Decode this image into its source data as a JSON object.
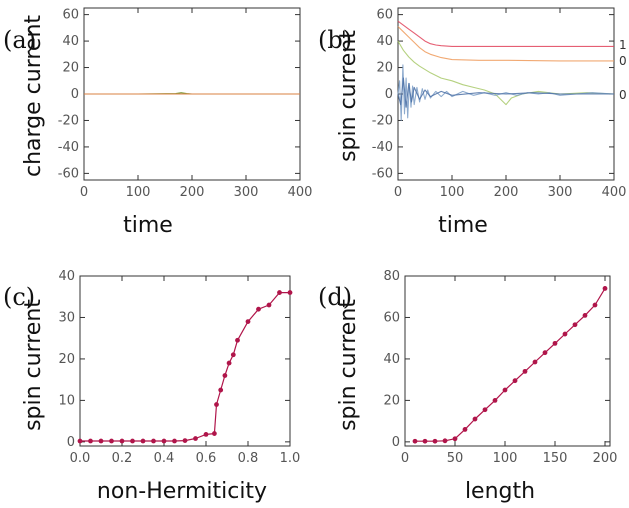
{
  "chart_data": [
    {
      "panel_label": "(a)",
      "type": "line",
      "xlabel": "time",
      "ylabel": "charge current",
      "xlim": [
        0,
        400
      ],
      "ylim": [
        -65,
        65
      ],
      "xticks": [
        0,
        100,
        200,
        300,
        400
      ],
      "yticks": [
        -60,
        -40,
        -20,
        0,
        20,
        40,
        60
      ],
      "series": [
        {
          "color": "#6b8e23",
          "x": [
            0,
            100,
            170,
            180,
            190,
            200,
            300,
            400
          ],
          "y": [
            0,
            0,
            0.3,
            1.0,
            0.4,
            0,
            0,
            0
          ]
        },
        {
          "color": "#c0392b",
          "x": [
            0,
            200,
            400
          ],
          "y": [
            0,
            0,
            0
          ]
        },
        {
          "color": "#e08a44",
          "x": [
            0,
            200,
            400
          ],
          "y": [
            0,
            0,
            0
          ]
        }
      ]
    },
    {
      "panel_label": "(b)",
      "type": "line",
      "xlabel": "time",
      "ylabel": "spin current",
      "xlim": [
        0,
        400
      ],
      "ylim": [
        -65,
        65
      ],
      "xticks": [
        0,
        100,
        200,
        300,
        400
      ],
      "yticks": [
        -60,
        -40,
        -20,
        0,
        20,
        40,
        60
      ],
      "side_labels": [
        "1",
        "0",
        "0"
      ],
      "series": [
        {
          "color": "#e0435a",
          "x": [
            0,
            10,
            20,
            30,
            40,
            50,
            60,
            70,
            80,
            100,
            150,
            200,
            300,
            400
          ],
          "y": [
            55,
            52,
            49,
            46,
            43,
            40,
            38,
            37,
            36.5,
            36,
            36,
            36,
            36,
            36
          ]
        },
        {
          "color": "#ef9a5a",
          "x": [
            0,
            10,
            20,
            30,
            40,
            50,
            60,
            80,
            100,
            150,
            200,
            300,
            400
          ],
          "y": [
            51,
            47,
            43,
            39,
            35,
            32,
            30,
            27.5,
            26,
            25.5,
            25.5,
            25,
            25
          ]
        },
        {
          "color": "#a8c96a",
          "x": [
            0,
            10,
            20,
            30,
            40,
            60,
            80,
            100,
            120,
            140,
            160,
            180,
            200,
            210,
            230,
            260,
            300,
            350,
            400
          ],
          "y": [
            40,
            33,
            28,
            24,
            21,
            16,
            12,
            10,
            7,
            5,
            3,
            0,
            -8,
            -3,
            0,
            2,
            0,
            1,
            0
          ]
        },
        {
          "color": "#7a9cc6",
          "x": [
            0,
            3,
            6,
            9,
            12,
            15,
            18,
            21,
            24,
            27,
            30,
            35,
            40,
            45,
            50,
            55,
            60,
            70,
            80,
            90,
            100,
            120,
            140,
            160,
            180,
            200,
            220,
            240,
            260,
            280,
            300,
            330,
            360,
            400
          ],
          "y": [
            0,
            10,
            -20,
            22,
            -15,
            12,
            -18,
            8,
            -10,
            6,
            -8,
            5,
            -6,
            4,
            -4,
            3,
            -3,
            2,
            -2,
            2,
            -2,
            2,
            -1,
            1,
            -1,
            1,
            -1,
            1,
            0,
            1,
            -1,
            0,
            1,
            0
          ]
        },
        {
          "color": "#4a6fa5",
          "x": [
            0,
            5,
            10,
            15,
            20,
            25,
            30,
            40,
            50,
            60,
            80,
            100,
            150,
            200,
            250,
            300,
            350,
            400
          ],
          "y": [
            0,
            -8,
            12,
            -10,
            8,
            -6,
            5,
            -4,
            3,
            -2,
            2,
            -1,
            1,
            0,
            1,
            0,
            0,
            0
          ]
        }
      ]
    },
    {
      "panel_label": "(c)",
      "type": "line",
      "xlabel": "non-Hermiticity",
      "ylabel": "spin current",
      "xlim": [
        0,
        1
      ],
      "ylim": [
        -1,
        40
      ],
      "xticks": [
        0.0,
        0.2,
        0.4,
        0.6,
        0.8,
        1.0
      ],
      "yticks": [
        0,
        10,
        20,
        30,
        40
      ],
      "series": [
        {
          "color": "#b0154a",
          "x": [
            0.0,
            0.05,
            0.1,
            0.15,
            0.2,
            0.25,
            0.3,
            0.35,
            0.4,
            0.45,
            0.5,
            0.55,
            0.6,
            0.64,
            0.65,
            0.67,
            0.69,
            0.71,
            0.73,
            0.75,
            0.8,
            0.85,
            0.9,
            0.95,
            1.0
          ],
          "y": [
            0.2,
            0.2,
            0.2,
            0.2,
            0.2,
            0.2,
            0.2,
            0.2,
            0.2,
            0.2,
            0.3,
            0.8,
            1.8,
            2.0,
            9,
            12.5,
            16,
            19,
            21,
            24.5,
            29,
            32,
            33,
            36,
            36
          ]
        }
      ]
    },
    {
      "panel_label": "(d)",
      "type": "line",
      "xlabel": "length",
      "ylabel": "spin current",
      "xlim": [
        0,
        205
      ],
      "ylim": [
        -2,
        80
      ],
      "xticks": [
        0,
        50,
        100,
        150,
        200
      ],
      "yticks": [
        0,
        20,
        40,
        60,
        80
      ],
      "series": [
        {
          "color": "#b0154a",
          "x": [
            10,
            20,
            30,
            40,
            50,
            60,
            70,
            80,
            90,
            100,
            110,
            120,
            130,
            140,
            150,
            160,
            170,
            180,
            190,
            200
          ],
          "y": [
            0.3,
            0.3,
            0.3,
            0.5,
            1.5,
            6,
            11,
            15.5,
            20,
            25,
            29.5,
            34,
            38.5,
            43,
            47.5,
            52,
            56.5,
            61,
            66,
            74
          ]
        }
      ]
    }
  ]
}
